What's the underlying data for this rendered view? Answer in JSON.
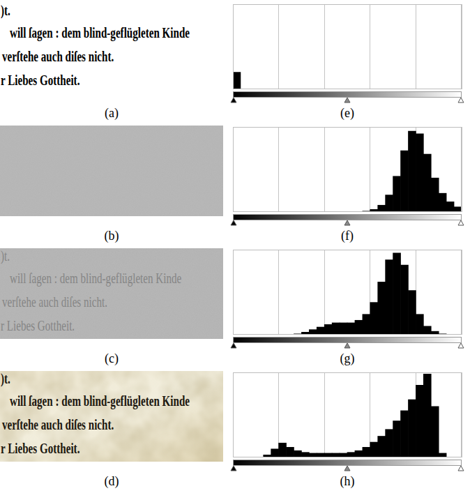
{
  "images": [
    {
      "label": "(a)",
      "lines": [
        ")t.",
        "will ſagen : dem blind-geflügleten Kinde",
        "verſtehe auch diſes nicht.",
        "r Liebes Gottheit."
      ]
    },
    {
      "label": "(b)"
    },
    {
      "label": "(c)",
      "lines": [
        ")t.",
        "will ſagen : dem blind-geflügleten Kinde",
        "verſtehe auch diſes nicht.",
        "r Liebes Gottheit."
      ]
    },
    {
      "label": "(d)",
      "lines": [
        ")t.",
        "will ſagen : dem blind-geflügleten Kinde",
        "verſtehe auch diſes nicht.",
        "r Liebes Gottheit."
      ]
    }
  ],
  "chart_data": [
    {
      "type": "histogram",
      "title": "(e)",
      "bins": [
        0,
        8.5,
        17,
        25.5,
        34,
        42.5,
        51,
        59.5,
        68,
        76.5,
        85,
        93.5,
        102,
        110.5,
        119,
        127.5,
        136,
        144.5,
        153,
        161.5,
        170,
        178.5,
        187,
        195.5,
        204,
        212.5,
        221,
        229.5,
        238,
        246.5,
        255
      ],
      "values": [
        20,
        0,
        0,
        0,
        0,
        0,
        0,
        0,
        0,
        0,
        0,
        0,
        0,
        0,
        0,
        0,
        0,
        0,
        0,
        0,
        0,
        0,
        0,
        0,
        0,
        0,
        0,
        0,
        0,
        0
      ],
      "color": "#000000",
      "xlim": [
        0,
        255
      ],
      "ylim": [
        0,
        100
      ],
      "xticks": [
        0,
        51,
        102,
        153,
        204,
        255
      ],
      "grid": true,
      "tick_labels": false
    },
    {
      "type": "histogram",
      "title": "(f)",
      "bins": [
        0,
        8.5,
        17,
        25.5,
        34,
        42.5,
        51,
        59.5,
        68,
        76.5,
        85,
        93.5,
        102,
        110.5,
        119,
        127.5,
        136,
        144.5,
        153,
        161.5,
        170,
        178.5,
        187,
        195.5,
        204,
        212.5,
        221,
        229.5,
        238,
        246.5,
        255
      ],
      "values": [
        0,
        0,
        0,
        0,
        0,
        0,
        0,
        0,
        0,
        0,
        0,
        0,
        0,
        0,
        0,
        0,
        0,
        1,
        3,
        8,
        20,
        42,
        72,
        95,
        92,
        68,
        40,
        22,
        12,
        6
      ],
      "color": "#000000",
      "xlim": [
        0,
        255
      ],
      "ylim": [
        0,
        100
      ],
      "xticks": [
        0,
        51,
        102,
        153,
        204,
        255
      ],
      "grid": true,
      "tick_labels": false
    },
    {
      "type": "histogram",
      "title": "(g)",
      "bins": [
        0,
        8.5,
        17,
        25.5,
        34,
        42.5,
        51,
        59.5,
        68,
        76.5,
        85,
        93.5,
        102,
        110.5,
        119,
        127.5,
        136,
        144.5,
        153,
        161.5,
        170,
        178.5,
        187,
        195.5,
        204,
        212.5,
        221,
        229.5,
        238,
        246.5,
        255
      ],
      "values": [
        0,
        0,
        0,
        0,
        0,
        0,
        0,
        0,
        1,
        3,
        6,
        9,
        12,
        14,
        14,
        14,
        17,
        24,
        38,
        62,
        88,
        96,
        82,
        52,
        24,
        10,
        4,
        1,
        0,
        0
      ],
      "color": "#000000",
      "xlim": [
        0,
        255
      ],
      "ylim": [
        0,
        100
      ],
      "xticks": [
        0,
        51,
        102,
        153,
        204,
        255
      ],
      "grid": true,
      "tick_labels": false
    },
    {
      "type": "histogram",
      "title": "(h)",
      "bins": [
        0,
        8.5,
        17,
        25.5,
        34,
        42.5,
        51,
        59.5,
        68,
        76.5,
        85,
        93.5,
        102,
        110.5,
        119,
        127.5,
        136,
        144.5,
        153,
        161.5,
        170,
        178.5,
        187,
        195.5,
        204,
        212.5,
        221,
        229.5,
        238,
        246.5,
        255
      ],
      "values": [
        0,
        0,
        0,
        0,
        3,
        10,
        17,
        12,
        8,
        6,
        5,
        5,
        5,
        5,
        5,
        6,
        8,
        12,
        18,
        25,
        33,
        43,
        55,
        68,
        85,
        98,
        60,
        5,
        0,
        0
      ],
      "color": "#000000",
      "xlim": [
        0,
        255
      ],
      "ylim": [
        0,
        100
      ],
      "xticks": [
        0,
        51,
        102,
        153,
        204,
        255
      ],
      "grid": true,
      "tick_labels": false
    }
  ]
}
